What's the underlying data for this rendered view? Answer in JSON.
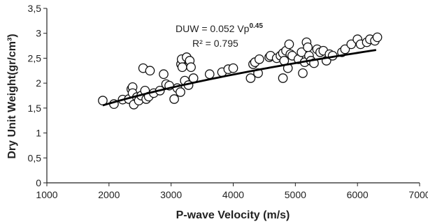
{
  "chart_data": {
    "type": "scatter",
    "xlabel": "P-wave Velocity (m/s)",
    "ylabel": "Dry Unit  Weight(gr/cm³)",
    "xlim": [
      1000,
      7000
    ],
    "ylim": [
      0,
      3.5
    ],
    "x_ticks": [
      "1000",
      "2000",
      "3000",
      "4000",
      "5000",
      "6000",
      "7000"
    ],
    "y_ticks": [
      "0",
      "0,5",
      "1",
      "1,5",
      "2",
      "2,5",
      "3",
      "3,5"
    ],
    "grid": false,
    "marker": "open-circle",
    "points": [
      [
        1900,
        1.65
      ],
      [
        2080,
        1.58
      ],
      [
        2220,
        1.67
      ],
      [
        2320,
        1.68
      ],
      [
        2360,
        1.88
      ],
      [
        2380,
        1.92
      ],
      [
        2380,
        1.8
      ],
      [
        2400,
        1.57
      ],
      [
        2450,
        1.72
      ],
      [
        2480,
        1.65
      ],
      [
        2520,
        1.75
      ],
      [
        2550,
        2.3
      ],
      [
        2580,
        1.85
      ],
      [
        2600,
        1.68
      ],
      [
        2640,
        1.73
      ],
      [
        2660,
        2.25
      ],
      [
        2720,
        1.8
      ],
      [
        2820,
        1.85
      ],
      [
        2880,
        2.18
      ],
      [
        2920,
        1.98
      ],
      [
        2970,
        1.95
      ],
      [
        3050,
        1.68
      ],
      [
        3100,
        1.9
      ],
      [
        3150,
        1.82
      ],
      [
        3160,
        2.38
      ],
      [
        3170,
        2.48
      ],
      [
        3180,
        2.32
      ],
      [
        3220,
        2.05
      ],
      [
        3250,
        2.52
      ],
      [
        3280,
        1.96
      ],
      [
        3300,
        2.45
      ],
      [
        3320,
        2.32
      ],
      [
        3360,
        2.1
      ],
      [
        3620,
        2.18
      ],
      [
        3820,
        2.22
      ],
      [
        3920,
        2.28
      ],
      [
        4000,
        2.3
      ],
      [
        4280,
        2.1
      ],
      [
        4320,
        2.38
      ],
      [
        4350,
        2.42
      ],
      [
        4400,
        2.2
      ],
      [
        4420,
        2.48
      ],
      [
        4580,
        2.52
      ],
      [
        4600,
        2.55
      ],
      [
        4700,
        2.5
      ],
      [
        4760,
        2.55
      ],
      [
        4800,
        2.1
      ],
      [
        4800,
        2.6
      ],
      [
        4820,
        2.45
      ],
      [
        4850,
        2.65
      ],
      [
        4880,
        2.3
      ],
      [
        4900,
        2.78
      ],
      [
        4920,
        2.58
      ],
      [
        4950,
        2.55
      ],
      [
        5050,
        2.48
      ],
      [
        5100,
        2.62
      ],
      [
        5120,
        2.2
      ],
      [
        5150,
        2.42
      ],
      [
        5180,
        2.82
      ],
      [
        5200,
        2.72
      ],
      [
        5220,
        2.55
      ],
      [
        5250,
        2.45
      ],
      [
        5300,
        2.4
      ],
      [
        5350,
        2.68
      ],
      [
        5400,
        2.62
      ],
      [
        5450,
        2.65
      ],
      [
        5500,
        2.45
      ],
      [
        5550,
        2.58
      ],
      [
        5600,
        2.55
      ],
      [
        5750,
        2.62
      ],
      [
        5800,
        2.68
      ],
      [
        5900,
        2.78
      ],
      [
        6000,
        2.88
      ],
      [
        6050,
        2.78
      ],
      [
        6150,
        2.82
      ],
      [
        6200,
        2.88
      ],
      [
        6280,
        2.85
      ],
      [
        6320,
        2.92
      ]
    ],
    "fit": {
      "type": "power",
      "coefficient": 0.052,
      "exponent": 0.45,
      "x_range": [
        1900,
        6300
      ]
    },
    "equation": "DUW = 0.052 Vp",
    "equation_exponent": "0.45",
    "r2": "R² = 0.795"
  }
}
